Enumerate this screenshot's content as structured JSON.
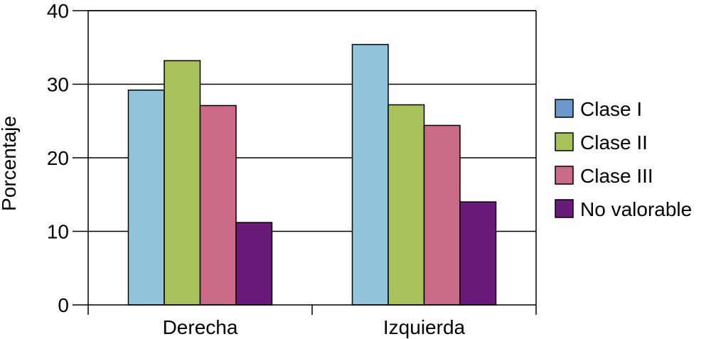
{
  "chart_data": {
    "type": "bar",
    "title": "",
    "xlabel": "",
    "ylabel": "Porcentaje",
    "categories": [
      "Derecha",
      "Izquierda"
    ],
    "ylim": [
      0,
      40
    ],
    "yticks": [
      0,
      10,
      20,
      30,
      40
    ],
    "grid": true,
    "legend_position": "right",
    "series": [
      {
        "name": "Clase I",
        "values": [
          29.2,
          35.4
        ],
        "color": "#92c5db",
        "legend_color": "#6d98cc"
      },
      {
        "name": "Clase II",
        "values": [
          33.2,
          27.2
        ],
        "color": "#a8c15a",
        "legend_color": "#a8c15a"
      },
      {
        "name": "Clase III",
        "values": [
          27.1,
          24.4
        ],
        "color": "#cc6b87",
        "legend_color": "#cc6b87"
      },
      {
        "name": "No valorable",
        "values": [
          11.2,
          14.0
        ],
        "color": "#6a1a78",
        "legend_color": "#6a1a78"
      }
    ]
  }
}
